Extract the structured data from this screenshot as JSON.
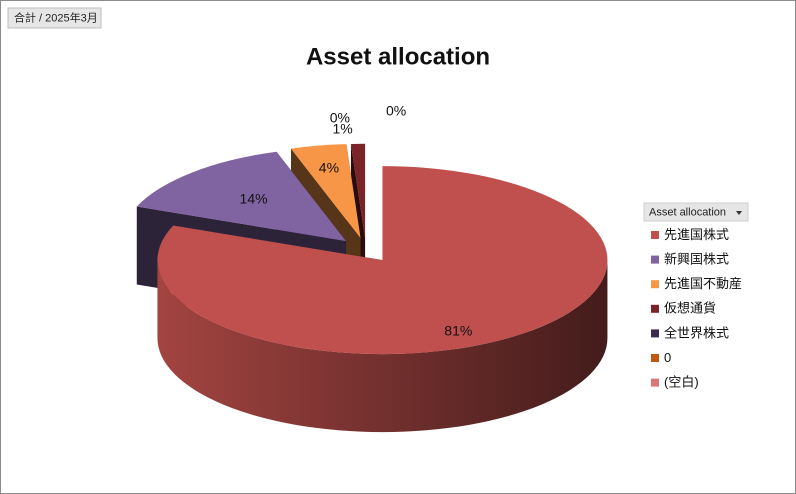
{
  "chart_data": {
    "type": "pie3d",
    "field_button": "合計 / 2025年3月",
    "title": "Asset allocation",
    "legend_title": "Asset allocation",
    "legend_position": "right",
    "categories": [
      "先進国株式",
      "新興国株式",
      "先進国不動産",
      "仮想通貨",
      "全世界株式",
      "0",
      "(空白)"
    ],
    "values": [
      81,
      14,
      4,
      1,
      0,
      0,
      0
    ],
    "value_labels": [
      "81%",
      "14%",
      "4%",
      "1%",
      "0%",
      "0%",
      null
    ],
    "colors": [
      "#c0504d",
      "#8064a2",
      "#f79646",
      "#7b2326",
      "#3a2b4f",
      "#c0580f",
      "#d9777a"
    ]
  }
}
